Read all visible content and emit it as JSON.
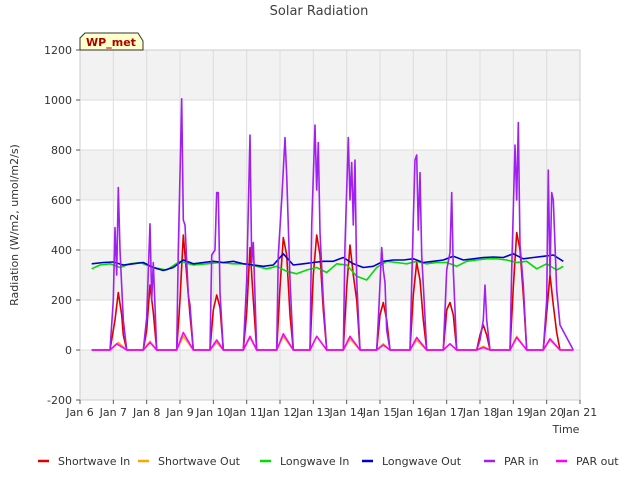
{
  "chart_data": {
    "type": "line",
    "title": "Solar Radiation",
    "xlabel": "Time",
    "ylabel": "Radiation (W/m2, umol/m2/s)",
    "station_label": "WP_met",
    "xlim": [
      6,
      21
    ],
    "ylim": [
      -200,
      1200
    ],
    "x_ticks": [
      {
        "v": 6,
        "label": "Jan 6"
      },
      {
        "v": 7,
        "label": "Jan 7"
      },
      {
        "v": 8,
        "label": "Jan 8"
      },
      {
        "v": 9,
        "label": "Jan 9"
      },
      {
        "v": 10,
        "label": "Jan 10"
      },
      {
        "v": 11,
        "label": "Jan 11"
      },
      {
        "v": 12,
        "label": "Jan 12"
      },
      {
        "v": 13,
        "label": "Jan 13"
      },
      {
        "v": 14,
        "label": "Jan 14"
      },
      {
        "v": 15,
        "label": "Jan 15"
      },
      {
        "v": 16,
        "label": "Jan 16"
      },
      {
        "v": 17,
        "label": "Jan 17"
      },
      {
        "v": 18,
        "label": "Jan 18"
      },
      {
        "v": 19,
        "label": "Jan 19"
      },
      {
        "v": 20,
        "label": "Jan 20"
      },
      {
        "v": 21,
        "label": "Jan 21"
      }
    ],
    "y_ticks": [
      -200,
      0,
      200,
      400,
      600,
      800,
      1000,
      1200
    ],
    "grid": true,
    "legend_position": "bottom",
    "series": [
      {
        "name": "Shortwave In",
        "color": "#dd0000",
        "x": [
          6.35,
          6.9,
          7.05,
          7.15,
          7.25,
          7.3,
          7.4,
          7.9,
          8.0,
          8.1,
          8.2,
          8.3,
          8.9,
          9.0,
          9.1,
          9.2,
          9.3,
          9.4,
          9.9,
          10.0,
          10.1,
          10.2,
          10.3,
          10.9,
          11.0,
          11.1,
          11.2,
          11.3,
          11.9,
          12.0,
          12.1,
          12.2,
          12.3,
          12.4,
          12.9,
          13.0,
          13.1,
          13.2,
          13.3,
          13.4,
          13.9,
          14.0,
          14.1,
          14.2,
          14.3,
          14.4,
          14.9,
          15.0,
          15.1,
          15.2,
          15.3,
          15.9,
          16.0,
          16.1,
          16.2,
          16.3,
          16.4,
          16.9,
          17.0,
          17.1,
          17.2,
          17.3,
          17.9,
          18.0,
          18.1,
          18.2,
          18.3,
          18.9,
          19.0,
          19.1,
          19.2,
          19.3,
          19.4,
          19.9,
          20.0,
          20.1,
          20.2,
          20.3,
          20.4,
          20.8
        ],
        "y": [
          0,
          0,
          120,
          230,
          140,
          60,
          0,
          0,
          80,
          260,
          150,
          0,
          0,
          200,
          460,
          300,
          140,
          0,
          0,
          160,
          220,
          170,
          0,
          0,
          150,
          410,
          200,
          0,
          0,
          250,
          450,
          380,
          140,
          0,
          0,
          300,
          460,
          380,
          160,
          0,
          0,
          250,
          420,
          300,
          200,
          0,
          0,
          140,
          190,
          120,
          0,
          0,
          220,
          350,
          280,
          120,
          0,
          0,
          160,
          190,
          140,
          0,
          0,
          60,
          100,
          60,
          0,
          0,
          250,
          470,
          400,
          220,
          0,
          0,
          150,
          300,
          180,
          70,
          0,
          0
        ]
      },
      {
        "name": "Shortwave Out",
        "color": "#ffa500",
        "x": [
          6.35,
          6.9,
          7.15,
          7.4,
          7.9,
          8.1,
          8.3,
          8.9,
          9.1,
          9.4,
          9.9,
          10.1,
          10.3,
          10.9,
          11.1,
          11.3,
          11.9,
          12.1,
          12.4,
          12.9,
          13.1,
          13.4,
          13.9,
          14.1,
          14.4,
          14.9,
          15.1,
          15.3,
          15.9,
          16.1,
          16.4,
          16.9,
          17.1,
          17.3,
          17.9,
          18.1,
          18.3,
          18.9,
          19.1,
          19.4,
          19.9,
          20.1,
          20.4,
          20.8
        ],
        "y": [
          0,
          0,
          30,
          0,
          0,
          35,
          0,
          0,
          55,
          0,
          0,
          30,
          0,
          0,
          50,
          0,
          0,
          55,
          0,
          0,
          55,
          0,
          0,
          45,
          0,
          0,
          25,
          0,
          0,
          40,
          0,
          0,
          25,
          0,
          0,
          15,
          0,
          0,
          55,
          0,
          0,
          40,
          0,
          0
        ]
      },
      {
        "name": "Longwave In",
        "color": "#00dd00",
        "x": [
          6.35,
          6.6,
          6.9,
          7.2,
          7.5,
          7.8,
          8.2,
          8.6,
          9.0,
          9.4,
          9.8,
          10.2,
          10.6,
          11.0,
          11.3,
          11.6,
          11.9,
          12.2,
          12.5,
          12.8,
          13.1,
          13.4,
          13.7,
          14.0,
          14.3,
          14.6,
          14.9,
          15.2,
          15.5,
          15.8,
          16.1,
          16.4,
          16.7,
          17.0,
          17.3,
          17.6,
          17.9,
          18.2,
          18.5,
          18.8,
          19.1,
          19.4,
          19.7,
          20.0,
          20.3,
          20.5
        ],
        "y": [
          325,
          340,
          345,
          330,
          345,
          350,
          330,
          320,
          355,
          340,
          345,
          350,
          345,
          345,
          335,
          325,
          335,
          315,
          305,
          320,
          330,
          310,
          345,
          340,
          295,
          280,
          330,
          355,
          350,
          345,
          355,
          345,
          350,
          350,
          335,
          355,
          360,
          365,
          365,
          360,
          350,
          355,
          325,
          345,
          320,
          335
        ]
      },
      {
        "name": "Longwave Out",
        "color": "#0000cc",
        "x": [
          6.35,
          6.7,
          7.0,
          7.3,
          7.6,
          7.9,
          8.2,
          8.5,
          8.8,
          9.1,
          9.4,
          9.7,
          10.0,
          10.3,
          10.6,
          10.9,
          11.2,
          11.5,
          11.8,
          12.1,
          12.4,
          12.7,
          13.0,
          13.3,
          13.6,
          13.9,
          14.2,
          14.5,
          14.8,
          15.1,
          15.4,
          15.7,
          16.0,
          16.3,
          16.6,
          16.9,
          17.2,
          17.5,
          17.8,
          18.1,
          18.4,
          18.7,
          19.0,
          19.3,
          19.6,
          19.9,
          20.2,
          20.5
        ],
        "y": [
          345,
          350,
          352,
          340,
          345,
          350,
          330,
          318,
          330,
          360,
          345,
          350,
          355,
          350,
          355,
          345,
          340,
          335,
          340,
          385,
          340,
          345,
          350,
          355,
          355,
          370,
          345,
          330,
          335,
          355,
          360,
          360,
          365,
          350,
          355,
          360,
          375,
          360,
          365,
          370,
          372,
          370,
          385,
          365,
          370,
          375,
          380,
          355
        ]
      },
      {
        "name": "PAR in",
        "color": "#a020f0",
        "x": [
          6.35,
          6.9,
          7.0,
          7.05,
          7.1,
          7.15,
          7.2,
          7.3,
          7.4,
          7.9,
          8.0,
          8.1,
          8.15,
          8.2,
          8.3,
          8.9,
          8.95,
          9.05,
          9.1,
          9.15,
          9.25,
          9.3,
          9.4,
          9.9,
          9.95,
          10.05,
          10.1,
          10.15,
          10.2,
          10.3,
          10.9,
          11.0,
          11.1,
          11.15,
          11.2,
          11.3,
          11.9,
          11.95,
          12.05,
          12.1,
          12.15,
          12.2,
          12.3,
          12.4,
          12.9,
          12.95,
          13.05,
          13.1,
          13.15,
          13.2,
          13.3,
          13.4,
          13.9,
          13.95,
          14.05,
          14.1,
          14.15,
          14.2,
          14.25,
          14.3,
          14.4,
          14.9,
          14.95,
          15.05,
          15.1,
          15.15,
          15.2,
          15.3,
          15.9,
          16.0,
          16.05,
          16.1,
          16.15,
          16.2,
          16.25,
          16.3,
          16.4,
          16.9,
          17.0,
          17.1,
          17.15,
          17.2,
          17.3,
          17.9,
          18.0,
          18.1,
          18.15,
          18.2,
          18.3,
          18.9,
          18.95,
          19.05,
          19.1,
          19.15,
          19.2,
          19.3,
          19.4,
          19.9,
          20.0,
          20.05,
          20.1,
          20.15,
          20.2,
          20.3,
          20.4,
          20.8
        ],
        "y": [
          0,
          0,
          200,
          490,
          300,
          650,
          400,
          120,
          0,
          0,
          130,
          505,
          200,
          350,
          0,
          0,
          400,
          1005,
          520,
          500,
          220,
          180,
          0,
          0,
          380,
          400,
          630,
          630,
          230,
          0,
          0,
          280,
          860,
          350,
          430,
          0,
          0,
          380,
          600,
          720,
          850,
          700,
          280,
          0,
          0,
          500,
          900,
          640,
          830,
          470,
          200,
          0,
          0,
          420,
          850,
          600,
          750,
          500,
          760,
          280,
          0,
          0,
          120,
          410,
          320,
          270,
          80,
          0,
          0,
          520,
          760,
          780,
          480,
          710,
          380,
          260,
          0,
          0,
          320,
          390,
          630,
          320,
          0,
          0,
          40,
          120,
          260,
          120,
          0,
          0,
          320,
          820,
          600,
          910,
          420,
          260,
          0,
          0,
          200,
          720,
          300,
          630,
          600,
          240,
          100,
          0
        ]
      },
      {
        "name": "PAR out",
        "color": "#ff00ff",
        "x": [
          6.35,
          6.9,
          7.1,
          7.4,
          7.9,
          8.1,
          8.3,
          8.9,
          9.1,
          9.4,
          9.9,
          10.1,
          10.3,
          10.9,
          11.1,
          11.3,
          11.9,
          12.1,
          12.4,
          12.9,
          13.1,
          13.4,
          13.9,
          14.1,
          14.4,
          14.9,
          15.1,
          15.3,
          15.9,
          16.1,
          16.4,
          16.9,
          17.1,
          17.3,
          17.9,
          18.1,
          18.3,
          18.9,
          19.1,
          19.4,
          19.9,
          20.1,
          20.4,
          20.8
        ],
        "y": [
          0,
          0,
          25,
          0,
          0,
          30,
          0,
          0,
          70,
          0,
          0,
          40,
          0,
          0,
          55,
          0,
          0,
          65,
          0,
          0,
          55,
          0,
          0,
          55,
          0,
          0,
          20,
          0,
          0,
          50,
          0,
          0,
          25,
          0,
          0,
          10,
          0,
          0,
          50,
          0,
          0,
          45,
          0,
          0
        ]
      }
    ]
  }
}
